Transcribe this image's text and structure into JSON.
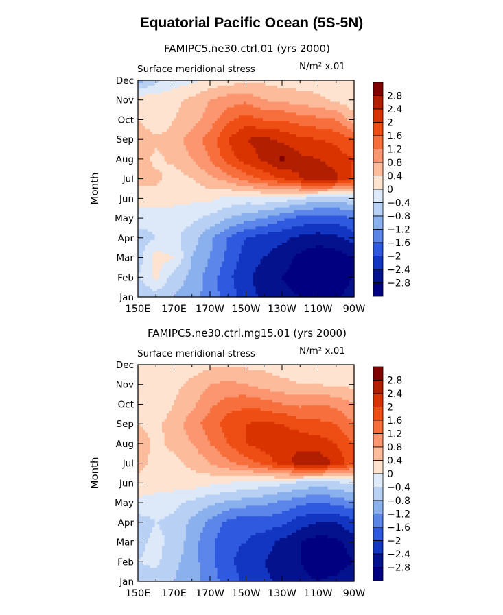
{
  "title": "Equatorial Pacific Ocean (5S-5N)",
  "colorbar": {
    "levels": [
      "2.8",
      "2.4",
      "2",
      "1.6",
      "1.2",
      "0.8",
      "0.4",
      "0",
      "−0.4",
      "−0.8",
      "−1.2",
      "−1.6",
      "−2",
      "−2.4",
      "−2.8"
    ],
    "colors": [
      "#800000",
      "#b11f00",
      "#d93300",
      "#ee4d14",
      "#f66f3c",
      "#fb9670",
      "#fcbc9c",
      "#fde3d0",
      "#dde9f8",
      "#b8d0f3",
      "#8ab0ee",
      "#5c86ea",
      "#2f59df",
      "#1236c2",
      "#04138d",
      "#000080"
    ]
  },
  "chart_data": [
    {
      "type": "heatmap",
      "subtitle": "FAMIPC5.ne30.ctrl.01 (yrs 2000)",
      "left_label": "Surface meridional stress",
      "right_label": "N/m² x.01",
      "xlabel": "",
      "ylabel": "Month",
      "x_ticks": [
        "150E",
        "170E",
        "170W",
        "150W",
        "130W",
        "110W",
        "90W"
      ],
      "y_ticks": [
        "Jan",
        "Feb",
        "Mar",
        "Apr",
        "May",
        "Jun",
        "Jul",
        "Aug",
        "Sep",
        "Oct",
        "Nov",
        "Dec"
      ],
      "x_range": [
        150,
        270
      ],
      "y_range": [
        1,
        12
      ],
      "field": {
        "x": [
          150,
          160,
          170,
          180,
          190,
          200,
          210,
          220,
          230,
          240,
          250,
          260,
          270
        ],
        "y": [
          1,
          2,
          3,
          4,
          5,
          6,
          7,
          8,
          9,
          10,
          11,
          12
        ],
        "z": [
          [
            -0.8,
            -0.6,
            -0.8,
            -1.0,
            -1.4,
            -1.8,
            -2.2,
            -2.5,
            -2.7,
            -2.8,
            -2.9,
            -2.9,
            -2.6
          ],
          [
            -0.4,
            0.1,
            -0.6,
            -0.9,
            -1.4,
            -1.9,
            -2.3,
            -2.6,
            -2.8,
            -3.0,
            -3.0,
            -3.0,
            -2.8
          ],
          [
            -0.6,
            0.2,
            0.0,
            -0.8,
            -1.2,
            -1.7,
            -2.2,
            -2.4,
            -2.6,
            -2.9,
            -3.1,
            -3.0,
            -2.8
          ],
          [
            -0.6,
            -0.4,
            -0.3,
            -0.6,
            -1.1,
            -1.6,
            -2.0,
            -2.2,
            -2.3,
            -2.5,
            -2.6,
            -2.5,
            -2.2
          ],
          [
            -0.2,
            -0.3,
            -0.3,
            -0.3,
            -0.5,
            -0.8,
            -1.0,
            -1.2,
            -1.5,
            -1.7,
            -1.8,
            -1.8,
            -1.6
          ],
          [
            0.2,
            0.2,
            0.2,
            0.1,
            0.1,
            -0.1,
            -0.2,
            -0.1,
            -0.2,
            -0.4,
            -0.6,
            -0.6,
            -0.4
          ],
          [
            0.5,
            0.5,
            0.2,
            0.4,
            0.7,
            1.0,
            1.4,
            1.7,
            2.0,
            2.4,
            2.8,
            2.5,
            1.9
          ],
          [
            0.6,
            0.3,
            0.5,
            0.8,
            1.2,
            1.8,
            2.2,
            2.5,
            2.9,
            2.5,
            2.4,
            2.2,
            2.0
          ],
          [
            0.8,
            0.5,
            0.6,
            1.0,
            1.4,
            2.0,
            2.4,
            2.5,
            2.3,
            2.1,
            2.0,
            1.9,
            1.6
          ],
          [
            0.4,
            0.0,
            0.4,
            0.6,
            1.0,
            1.5,
            1.8,
            1.6,
            1.6,
            1.4,
            1.3,
            1.2,
            0.6
          ],
          [
            0.3,
            0.2,
            0.3,
            0.5,
            0.8,
            1.0,
            1.1,
            0.8,
            0.7,
            0.6,
            0.5,
            0.3,
            0.1
          ],
          [
            -1.0,
            -0.5,
            -0.2,
            -0.1,
            0.1,
            0.2,
            0.3,
            0.3,
            0.2,
            0.2,
            0.2,
            0.1,
            0.0
          ]
        ]
      }
    },
    {
      "type": "heatmap",
      "subtitle": "FAMIPC5.ne30.ctrl.mg15.01 (yrs 2000)",
      "left_label": "Surface meridional stress",
      "right_label": "N/m² x.01",
      "xlabel": "",
      "ylabel": "Month",
      "x_ticks": [
        "150E",
        "170E",
        "170W",
        "150W",
        "130W",
        "110W",
        "90W"
      ],
      "y_ticks": [
        "Jan",
        "Feb",
        "Mar",
        "Apr",
        "May",
        "Jun",
        "Jul",
        "Aug",
        "Sep",
        "Oct",
        "Nov",
        "Dec"
      ],
      "x_range": [
        150,
        270
      ],
      "y_range": [
        1,
        12
      ],
      "field": {
        "x": [
          150,
          160,
          170,
          180,
          190,
          200,
          210,
          220,
          230,
          240,
          250,
          260,
          270
        ],
        "y": [
          1,
          2,
          3,
          4,
          5,
          6,
          7,
          8,
          9,
          10,
          11,
          12
        ],
        "z": [
          [
            -0.6,
            -0.6,
            -0.8,
            -1.0,
            -1.4,
            -1.8,
            -2.1,
            -2.3,
            -2.5,
            -2.7,
            -2.8,
            -2.7,
            -2.5
          ],
          [
            -0.4,
            -0.3,
            -0.7,
            -1.0,
            -1.5,
            -1.9,
            -2.2,
            -2.4,
            -2.6,
            -2.8,
            -3.0,
            -3.0,
            -2.8
          ],
          [
            -0.5,
            -0.3,
            -0.5,
            -1.0,
            -1.5,
            -1.9,
            -2.0,
            -2.2,
            -2.5,
            -2.8,
            -3.0,
            -2.9,
            -2.6
          ],
          [
            -0.6,
            -0.4,
            -0.5,
            -0.9,
            -1.3,
            -1.7,
            -1.9,
            -1.8,
            -1.9,
            -2.2,
            -2.4,
            -2.4,
            -2.1
          ],
          [
            -0.1,
            -0.2,
            -0.3,
            -0.5,
            -0.7,
            -0.9,
            -1.0,
            -1.1,
            -1.3,
            -1.5,
            -1.6,
            -1.5,
            -1.3
          ],
          [
            0.3,
            0.2,
            0.2,
            0.2,
            0.1,
            0.0,
            -0.1,
            -0.2,
            -0.3,
            -0.5,
            -0.6,
            -0.5,
            -0.3
          ],
          [
            0.5,
            0.3,
            0.3,
            0.5,
            0.8,
            1.1,
            1.4,
            1.7,
            2.2,
            2.6,
            2.7,
            2.3,
            1.7
          ],
          [
            0.6,
            0.3,
            0.5,
            0.8,
            1.2,
            1.6,
            2.0,
            2.2,
            2.3,
            2.3,
            2.2,
            2.0,
            1.6
          ],
          [
            0.4,
            0.3,
            0.6,
            1.0,
            1.4,
            1.8,
            2.0,
            2.1,
            2.0,
            1.8,
            1.7,
            1.6,
            1.2
          ],
          [
            0.3,
            0.1,
            0.4,
            0.7,
            1.1,
            1.4,
            1.5,
            1.4,
            1.2,
            1.1,
            1.2,
            1.1,
            0.8
          ],
          [
            0.3,
            0.2,
            0.3,
            0.5,
            0.8,
            0.9,
            0.8,
            0.6,
            0.5,
            0.4,
            0.4,
            0.3,
            0.3
          ],
          [
            0.0,
            0.0,
            0.1,
            0.2,
            0.3,
            0.3,
            0.3,
            0.3,
            0.2,
            0.2,
            0.1,
            0.1,
            0.1
          ]
        ]
      }
    }
  ]
}
